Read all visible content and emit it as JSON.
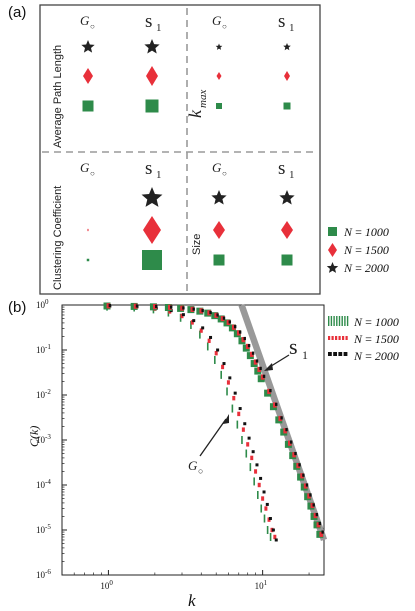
{
  "panel_a": {
    "label": "(a)",
    "quadrants": [
      {
        "id": "apl",
        "label": "Average Path Length",
        "col1": "G",
        "col1_sub": "○",
        "col2": "s",
        "col2_sub": "1"
      },
      {
        "id": "kmax",
        "label": "k",
        "label_sub": "max",
        "col1": "G",
        "col1_sub": "○",
        "col2": "s",
        "col2_sub": "1"
      },
      {
        "id": "cc",
        "label": "Clustering Coefficient",
        "col1": "G",
        "col1_sub": "○",
        "col2": "s",
        "col2_sub": "1"
      },
      {
        "id": "size",
        "label": "Size",
        "col1": "G",
        "col1_sub": "○",
        "col2": "s",
        "col2_sub": "1"
      }
    ],
    "legend": [
      {
        "marker": "square",
        "color": "#2e8b4a",
        "label": "N = 1000"
      },
      {
        "marker": "diamond",
        "color": "#e8303a",
        "label": "N = 1500"
      },
      {
        "marker": "star",
        "color": "#222222",
        "label": "N = 2000"
      }
    ]
  },
  "panel_b": {
    "label": "(b)",
    "annotation_s1": "s",
    "annotation_s1_sub": "1",
    "annotation_g": "G",
    "annotation_g_sub": "○",
    "legend": [
      {
        "style": "green-bars",
        "color": "#2e8b4a",
        "label": "N = 1000"
      },
      {
        "style": "red-dots",
        "color": "#e8303a",
        "label": "N = 1500"
      },
      {
        "style": "black-dash",
        "color": "#111111",
        "label": "N = 2000"
      }
    ]
  },
  "chart_data": {
    "type": "scatter",
    "xlabel": "k",
    "ylabel": "C(k)",
    "xscale": "log",
    "yscale": "log",
    "xlim": [
      0.5,
      25
    ],
    "ylim": [
      1e-06,
      1
    ],
    "x_ticks": [
      {
        "base": "10",
        "exp": "0",
        "value": 1
      },
      {
        "base": "10",
        "exp": "1",
        "value": 10
      }
    ],
    "y_ticks": [
      {
        "base": "10",
        "exp": "0",
        "value": 1
      },
      {
        "base": "10",
        "exp": "-1",
        "value": 0.1
      },
      {
        "base": "10",
        "exp": "-2",
        "value": 0.01
      },
      {
        "base": "10",
        "exp": "-3",
        "value": 0.001
      },
      {
        "base": "10",
        "exp": "-4",
        "value": 0.0001
      },
      {
        "base": "10",
        "exp": "-5",
        "value": 1e-05
      },
      {
        "base": "10",
        "exp": "-6",
        "value": 1e-06
      }
    ],
    "grid": false,
    "legend_position": "right",
    "fit_line": {
      "color": "#999999",
      "x": [
        7.3,
        25
      ],
      "y": [
        1,
        6e-06
      ]
    },
    "series": [
      {
        "group": "G",
        "n": 1000,
        "color": "#2e8b4a",
        "x": [
          1,
          1.5,
          2,
          2.5,
          3,
          3.5,
          4,
          4.5,
          5,
          5.5,
          6,
          6.5,
          7,
          7.5,
          8,
          8.5,
          9,
          9.5,
          10,
          10.5,
          11,
          11.5
        ],
        "y": [
          0.92,
          0.88,
          0.8,
          0.68,
          0.52,
          0.36,
          0.22,
          0.12,
          0.06,
          0.028,
          0.012,
          0.005,
          0.0022,
          0.001,
          0.0005,
          0.00025,
          0.00012,
          6e-05,
          3e-05,
          1.8e-05,
          1e-05,
          7e-06
        ]
      },
      {
        "group": "G",
        "n": 1500,
        "color": "#e8303a",
        "x": [
          1,
          1.5,
          2,
          2.5,
          3,
          3.5,
          4,
          4.5,
          5,
          5.5,
          6,
          6.5,
          7,
          7.5,
          8,
          8.5,
          9,
          9.5,
          10,
          10.5,
          11,
          11.5,
          12
        ],
        "y": [
          0.93,
          0.9,
          0.83,
          0.72,
          0.57,
          0.41,
          0.27,
          0.16,
          0.085,
          0.042,
          0.019,
          0.0085,
          0.0038,
          0.0017,
          0.0008,
          0.0004,
          0.0002,
          0.0001,
          5e-05,
          3e-05,
          1.7e-05,
          1e-05,
          7e-06
        ]
      },
      {
        "group": "G",
        "n": 2000,
        "color": "#111111",
        "x": [
          1,
          1.5,
          2,
          2.5,
          3,
          3.5,
          4,
          4.5,
          5,
          5.5,
          6,
          6.5,
          7,
          7.5,
          8,
          8.5,
          9,
          9.5,
          10,
          10.5,
          11,
          11.5,
          12
        ],
        "y": [
          0.95,
          0.91,
          0.85,
          0.75,
          0.61,
          0.45,
          0.31,
          0.19,
          0.1,
          0.05,
          0.024,
          0.011,
          0.005,
          0.0023,
          0.0011,
          0.00055,
          0.00028,
          0.00014,
          7e-05,
          3.7e-05,
          1.8e-05,
          1e-05,
          6e-06
        ]
      },
      {
        "group": "s1",
        "n": 1000,
        "color": "#2e8b4a",
        "x": [
          1,
          1.5,
          2,
          2.5,
          3,
          3.5,
          4,
          4.5,
          5,
          5.5,
          6,
          6.5,
          7,
          7.5,
          8,
          8.5,
          9,
          9.5,
          10,
          11,
          12,
          13,
          14,
          15,
          16,
          17,
          18,
          19,
          20,
          21,
          22,
          23,
          24
        ],
        "y": [
          0.95,
          0.93,
          0.91,
          0.88,
          0.84,
          0.79,
          0.73,
          0.66,
          0.58,
          0.49,
          0.4,
          0.31,
          0.23,
          0.16,
          0.11,
          0.075,
          0.05,
          0.034,
          0.023,
          0.011,
          0.0055,
          0.0028,
          0.0015,
          0.0008,
          0.00045,
          0.00026,
          0.00015,
          9e-05,
          5.5e-05,
          3.4e-05,
          2e-05,
          1.3e-05,
          8e-06
        ]
      },
      {
        "group": "s1",
        "n": 1500,
        "color": "#e8303a",
        "x": [
          1,
          1.5,
          2,
          2.5,
          3,
          3.5,
          4,
          4.5,
          5,
          5.5,
          6,
          6.5,
          7,
          7.5,
          8,
          8.5,
          9,
          9.5,
          10,
          11,
          12,
          13,
          14,
          15,
          16,
          17,
          18,
          19,
          20,
          21,
          22,
          23,
          24
        ],
        "y": [
          0.96,
          0.94,
          0.92,
          0.89,
          0.85,
          0.8,
          0.74,
          0.67,
          0.59,
          0.5,
          0.41,
          0.32,
          0.24,
          0.17,
          0.12,
          0.08,
          0.054,
          0.037,
          0.025,
          0.012,
          0.006,
          0.003,
          0.0016,
          0.00085,
          0.00047,
          0.00027,
          0.00016,
          9.5e-05,
          5.7e-05,
          3.5e-05,
          2.1e-05,
          1.3e-05,
          8e-06
        ]
      },
      {
        "group": "s1",
        "n": 2000,
        "color": "#111111",
        "x": [
          1,
          1.5,
          2,
          2.5,
          3,
          3.5,
          4,
          4.5,
          5,
          5.5,
          6,
          6.5,
          7,
          7.5,
          8,
          8.5,
          9,
          9.5,
          10,
          11,
          12,
          13,
          14,
          15,
          16,
          17,
          18,
          19,
          20,
          21,
          22,
          23,
          24
        ],
        "y": [
          0.97,
          0.95,
          0.93,
          0.9,
          0.86,
          0.81,
          0.75,
          0.68,
          0.6,
          0.51,
          0.42,
          0.33,
          0.25,
          0.18,
          0.125,
          0.085,
          0.057,
          0.039,
          0.026,
          0.0125,
          0.0062,
          0.0031,
          0.0017,
          0.0009,
          0.0005,
          0.00028,
          0.000165,
          0.0001,
          6e-05,
          3.6e-05,
          2.2e-05,
          1.4e-05,
          9e-06
        ]
      }
    ]
  }
}
